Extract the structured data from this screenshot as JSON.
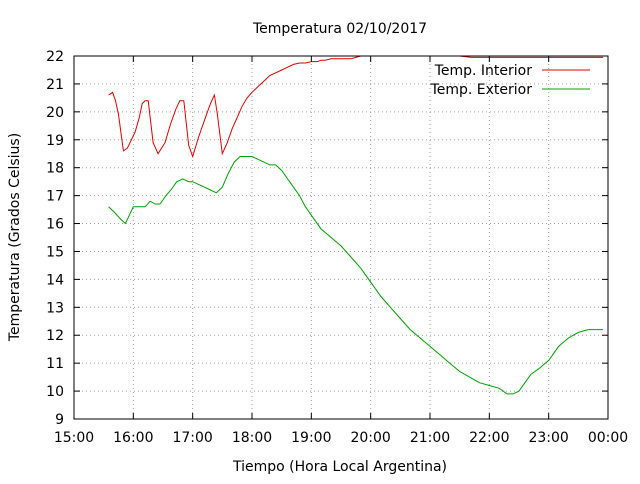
{
  "chart_data": {
    "type": "line",
    "title": "Temperatura 02/10/2017",
    "xlabel": "Tiempo (Hora Local Argentina)",
    "ylabel": "Temperatura (Grados Celsius)",
    "xlim": [
      "15:00",
      "00:00"
    ],
    "ylim": [
      9,
      22
    ],
    "x_ticks": [
      "15:00",
      "16:00",
      "17:00",
      "18:00",
      "19:00",
      "20:00",
      "21:00",
      "22:00",
      "23:00",
      "00:00"
    ],
    "y_ticks": [
      9,
      10,
      11,
      12,
      13,
      14,
      15,
      16,
      17,
      18,
      19,
      20,
      21,
      22
    ],
    "grid": true,
    "legend_position": "top-right",
    "series": [
      {
        "name": "Temp. Interior",
        "color": "#e00000",
        "x": [
          "15:35",
          "15:39",
          "15:42",
          "15:45",
          "15:50",
          "15:54",
          "15:58",
          "16:02",
          "16:06",
          "16:09",
          "16:12",
          "16:15",
          "16:20",
          "16:25",
          "16:32",
          "16:38",
          "16:43",
          "16:47",
          "16:51",
          "16:56",
          "17:00",
          "17:06",
          "17:12",
          "17:18",
          "17:22",
          "17:25",
          "17:30",
          "17:35",
          "17:40",
          "17:45",
          "17:50",
          "17:55",
          "18:00",
          "18:06",
          "18:12",
          "18:18",
          "18:24",
          "18:30",
          "18:36",
          "18:42",
          "18:48",
          "18:54",
          "19:00",
          "19:06",
          "19:10",
          "19:14",
          "19:20",
          "19:30",
          "19:40",
          "19:45",
          "19:50",
          "19:55",
          "20:00",
          "21:00",
          "21:30",
          "21:42",
          "22:00",
          "23:00",
          "23:55"
        ],
        "values": [
          20.6,
          20.7,
          20.4,
          19.9,
          18.6,
          18.7,
          19.0,
          19.3,
          19.8,
          20.3,
          20.4,
          20.4,
          18.9,
          18.5,
          18.9,
          19.6,
          20.1,
          20.4,
          20.4,
          18.8,
          18.4,
          19.1,
          19.7,
          20.3,
          20.6,
          19.9,
          18.5,
          18.9,
          19.4,
          19.8,
          20.2,
          20.5,
          20.7,
          20.9,
          21.1,
          21.3,
          21.4,
          21.5,
          21.6,
          21.7,
          21.75,
          21.75,
          21.8,
          21.8,
          21.85,
          21.85,
          21.9,
          21.9,
          21.9,
          21.95,
          22.0,
          22.0,
          22.0,
          22.0,
          22.0,
          21.95,
          21.95,
          21.95,
          21.95
        ]
      },
      {
        "name": "Temp. Exterior",
        "color": "#00a000",
        "x": [
          "15:35",
          "15:41",
          "15:46",
          "15:52",
          "16:00",
          "16:06",
          "16:12",
          "16:17",
          "16:22",
          "16:27",
          "16:33",
          "16:38",
          "16:44",
          "16:50",
          "16:56",
          "17:00",
          "17:06",
          "17:12",
          "17:18",
          "17:24",
          "17:30",
          "17:36",
          "17:42",
          "17:48",
          "17:54",
          "18:00",
          "18:06",
          "18:12",
          "18:18",
          "18:24",
          "18:30",
          "18:36",
          "18:42",
          "18:48",
          "18:54",
          "19:00",
          "19:10",
          "19:20",
          "19:30",
          "19:40",
          "19:50",
          "20:00",
          "20:10",
          "20:20",
          "20:30",
          "20:40",
          "20:50",
          "21:00",
          "21:10",
          "21:20",
          "21:30",
          "21:40",
          "21:50",
          "22:00",
          "22:10",
          "22:18",
          "22:24",
          "22:30",
          "22:36",
          "22:42",
          "22:50",
          "23:00",
          "23:10",
          "23:20",
          "23:30",
          "23:40",
          "23:50",
          "23:55"
        ],
        "values": [
          16.6,
          16.4,
          16.2,
          16.0,
          16.6,
          16.6,
          16.6,
          16.8,
          16.7,
          16.7,
          17.0,
          17.2,
          17.5,
          17.6,
          17.5,
          17.5,
          17.4,
          17.3,
          17.2,
          17.1,
          17.3,
          17.8,
          18.2,
          18.4,
          18.4,
          18.4,
          18.3,
          18.2,
          18.1,
          18.1,
          17.9,
          17.6,
          17.3,
          17.0,
          16.6,
          16.3,
          15.8,
          15.5,
          15.2,
          14.8,
          14.4,
          13.9,
          13.4,
          13.0,
          12.6,
          12.2,
          11.9,
          11.6,
          11.3,
          11.0,
          10.7,
          10.5,
          10.3,
          10.2,
          10.1,
          9.9,
          9.9,
          10.0,
          10.3,
          10.6,
          10.8,
          11.1,
          11.6,
          11.9,
          12.1,
          12.2,
          12.2,
          12.2
        ]
      }
    ]
  }
}
